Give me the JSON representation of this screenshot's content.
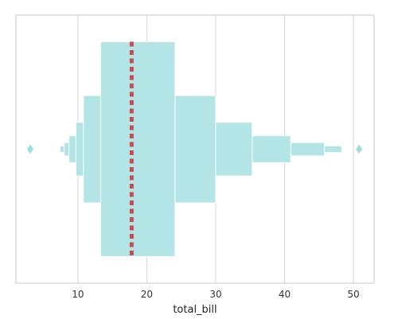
{
  "chart_data": {
    "type": "boxen",
    "orientation": "horizontal",
    "xlabel": "total_bill",
    "ylabel": "",
    "xlim": [
      1.0,
      53.0
    ],
    "xticks": [
      10,
      20,
      30,
      40,
      50
    ],
    "tick_labels": [
      "10",
      "20",
      "30",
      "40",
      "50"
    ],
    "grid": "vertical",
    "median": 17.8,
    "boxes": [
      {
        "low": 13.3,
        "high": 24.1,
        "height": 1.0
      },
      {
        "low": 10.8,
        "high": 30.0,
        "height": 0.5
      },
      {
        "low": 9.7,
        "high": 35.3,
        "height": 0.25
      },
      {
        "low": 8.7,
        "high": 40.9,
        "height": 0.125
      },
      {
        "low": 8.0,
        "high": 45.8,
        "height": 0.0625
      },
      {
        "low": 7.4,
        "high": 48.3,
        "height": 0.03125
      }
    ],
    "outliers": [
      3.07,
      50.81
    ],
    "colors": {
      "box": "#b3e5e7",
      "edge": "#ffffff",
      "median": "#c44e52",
      "grid": "#d5d5d5",
      "frame": "#c8c8c8",
      "outlier": "#9fdcdf"
    }
  }
}
